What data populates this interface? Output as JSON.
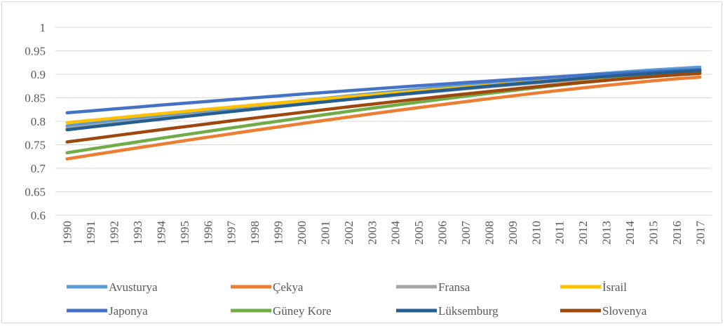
{
  "chart_data": {
    "type": "line",
    "title": "",
    "xlabel": "",
    "ylabel": "",
    "ylim": [
      0.6,
      1
    ],
    "yticks": [
      "0.6",
      "0.65",
      "0.7",
      "0.75",
      "0.8",
      "0.85",
      "0.9",
      "0.95",
      "1"
    ],
    "grid": "horizontal",
    "legend_position": "bottom",
    "x": [
      "1990",
      "1991",
      "1992",
      "1993",
      "1994",
      "1995",
      "1996",
      "1997",
      "1998",
      "1999",
      "2000",
      "2001",
      "2002",
      "2003",
      "2004",
      "2005",
      "2006",
      "2007",
      "2008",
      "2009",
      "2010",
      "2011",
      "2012",
      "2013",
      "2014",
      "2015",
      "2016",
      "2017"
    ],
    "series": [
      {
        "name": "Avusturya",
        "color": "#5b9bd5",
        "start": 0.79,
        "end": 0.915
      },
      {
        "name": "Çekya",
        "color": "#ed7d31",
        "start": 0.72,
        "end": 0.894
      },
      {
        "name": "Fransa",
        "color": "#a5a5a5",
        "start": 0.785,
        "end": 0.905
      },
      {
        "name": "İsrail",
        "color": "#ffc000",
        "start": 0.797,
        "end": 0.905
      },
      {
        "name": "Japonya",
        "color": "#4472c4",
        "start": 0.818,
        "end": 0.91
      },
      {
        "name": "Güney Kore",
        "color": "#70ad47",
        "start": 0.733,
        "end": 0.905
      },
      {
        "name": "Lüksemburg",
        "color": "#255e91",
        "start": 0.782,
        "end": 0.908
      },
      {
        "name": "Slovenya",
        "color": "#9e480e",
        "start": 0.756,
        "end": 0.902
      }
    ]
  }
}
